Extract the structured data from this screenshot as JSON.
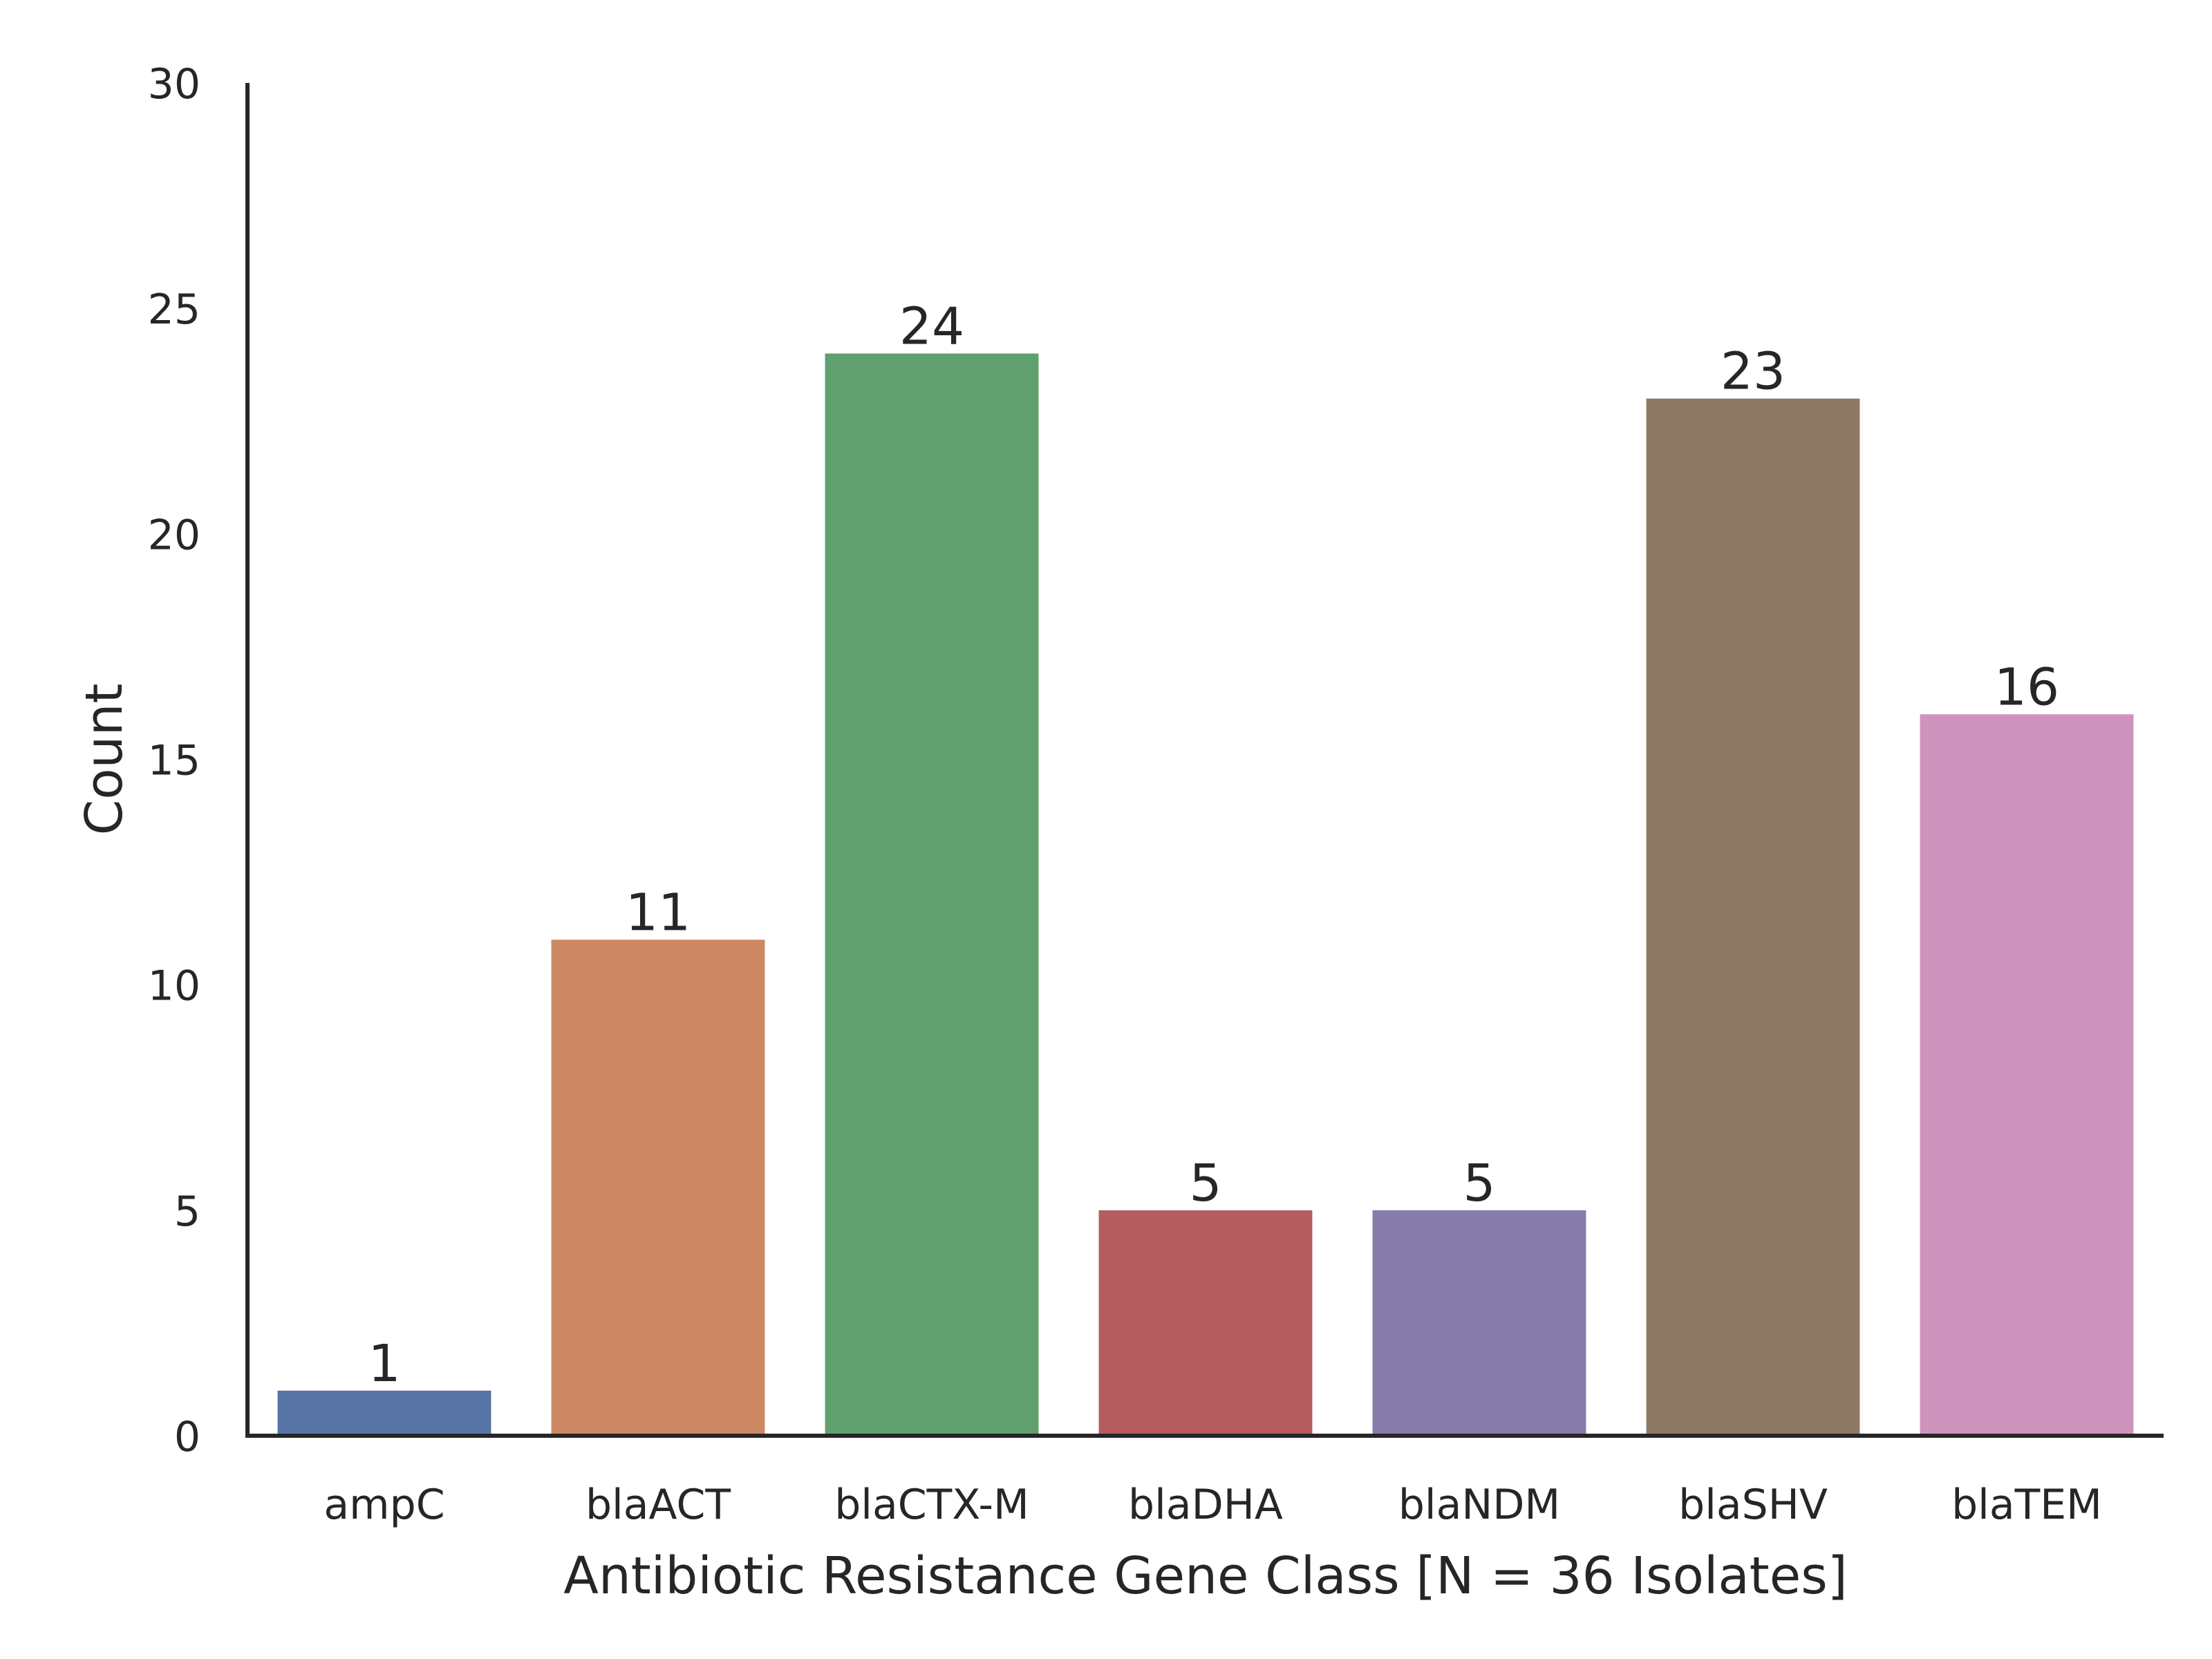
{
  "chart_data": {
    "type": "bar",
    "categories": [
      "ampC",
      "blaACT",
      "blaCTX-M",
      "blaDHA",
      "blaNDM",
      "blaSHV",
      "blaTEM"
    ],
    "values": [
      1,
      11,
      24,
      5,
      5,
      23,
      16
    ],
    "data_labels": [
      "1",
      "11",
      "24",
      "5",
      "5",
      "23",
      "16"
    ],
    "colors": [
      "#5874a4",
      "#cc8863",
      "#609f6e",
      "#b45c5f",
      "#877baa",
      "#8e7966",
      "#cf94bd"
    ],
    "xlabel": "Antibiotic Resistance Gene Class [N = 36 Isolates]",
    "ylabel": "Count",
    "ylim": [
      0,
      30
    ],
    "yticks": [
      0,
      5,
      10,
      15,
      20,
      25,
      30
    ],
    "ytick_labels": [
      "0",
      "5",
      "10",
      "15",
      "20",
      "25",
      "30"
    ],
    "grid": false,
    "axis_color": "#262626"
  }
}
